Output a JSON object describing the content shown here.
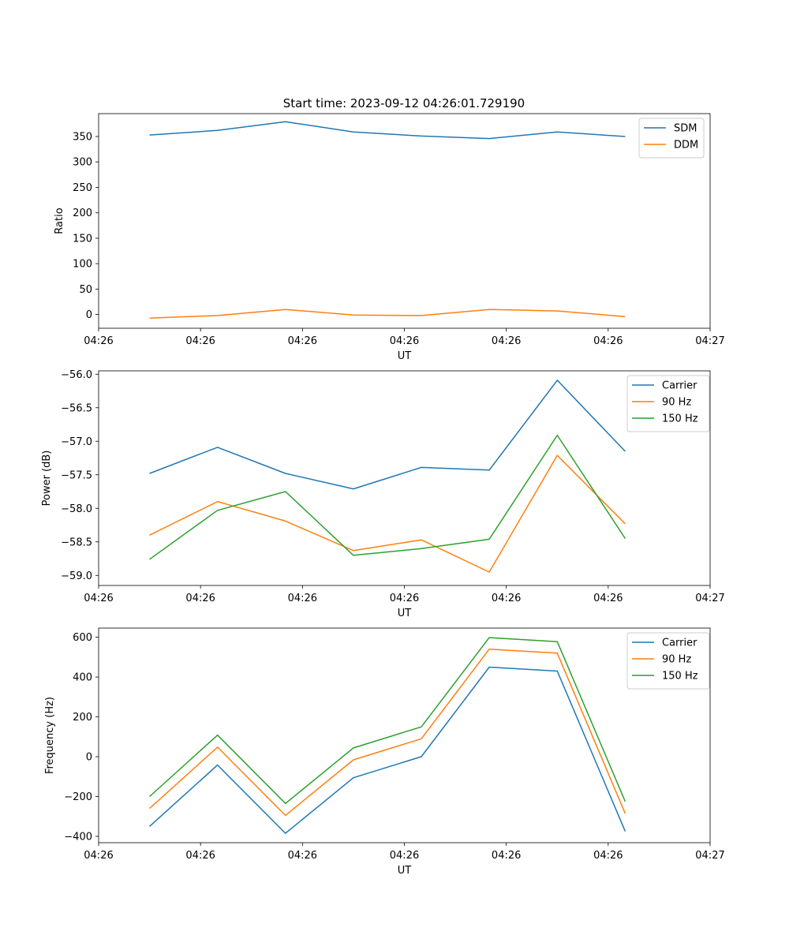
{
  "figure_title": "Start time: 2023-09-12 04:26:01.729190",
  "colors": {
    "blue": "#1f77b4",
    "orange": "#ff7f0e",
    "green": "#2ca02c"
  },
  "chart_data": [
    {
      "type": "line",
      "title": "Start time: 2023-09-12 04:26:01.729190",
      "xlabel": "UT",
      "ylabel": "Ratio",
      "x": [
        1,
        2,
        3,
        4,
        5,
        6,
        7,
        8
      ],
      "xlim": [
        0.25,
        9.25
      ],
      "xticks": [
        0.25,
        1.75,
        3.25,
        4.75,
        6.25,
        7.75,
        9.25
      ],
      "xtick_labels": [
        "04:26",
        "04:26",
        "04:26",
        "04:26",
        "04:26",
        "04:26",
        "04:27"
      ],
      "ylim": [
        -27,
        395
      ],
      "yticks": [
        0,
        50,
        100,
        150,
        200,
        250,
        300,
        350
      ],
      "legend_position": "top-right",
      "series": [
        {
          "name": "SDM",
          "color": "#1f77b4",
          "values": [
            353,
            362,
            379,
            359,
            351,
            346,
            359,
            350
          ]
        },
        {
          "name": "DDM",
          "color": "#ff7f0e",
          "values": [
            -7,
            -2,
            10,
            -1,
            -2,
            10,
            7,
            -4
          ]
        }
      ]
    },
    {
      "type": "line",
      "xlabel": "UT",
      "ylabel": "Power (dB)",
      "x": [
        1,
        2,
        3,
        4,
        5,
        6,
        7,
        8
      ],
      "xlim": [
        0.25,
        9.25
      ],
      "xticks": [
        0.25,
        1.75,
        3.25,
        4.75,
        6.25,
        7.75,
        9.25
      ],
      "xtick_labels": [
        "04:26",
        "04:26",
        "04:26",
        "04:26",
        "04:26",
        "04:26",
        "04:27"
      ],
      "ylim": [
        -59.15,
        -55.95
      ],
      "yticks": [
        -59.0,
        -58.5,
        -58.0,
        -57.5,
        -57.0,
        -56.5,
        -56.0
      ],
      "ytick_labels": [
        "−59.0",
        "−58.5",
        "−58.0",
        "−57.5",
        "−57.0",
        "−56.5",
        "−56.0"
      ],
      "legend_position": "top-right",
      "series": [
        {
          "name": "Carrier",
          "color": "#1f77b4",
          "values": [
            -57.48,
            -57.09,
            -57.48,
            -57.71,
            -57.39,
            -57.43,
            -56.09,
            -57.15
          ]
        },
        {
          "name": "90 Hz",
          "color": "#ff7f0e",
          "values": [
            -58.4,
            -57.9,
            -58.19,
            -58.63,
            -58.47,
            -58.95,
            -57.21,
            -58.23
          ]
        },
        {
          "name": "150 Hz",
          "color": "#2ca02c",
          "values": [
            -58.76,
            -58.03,
            -57.75,
            -58.7,
            -58.6,
            -58.46,
            -56.91,
            -58.45
          ]
        }
      ]
    },
    {
      "type": "line",
      "xlabel": "UT",
      "ylabel": "Frequency (Hz)",
      "x": [
        1,
        2,
        3,
        4,
        5,
        6,
        7,
        8
      ],
      "xlim": [
        0.25,
        9.25
      ],
      "xticks": [
        0.25,
        1.75,
        3.25,
        4.75,
        6.25,
        7.75,
        9.25
      ],
      "xtick_labels": [
        "04:26",
        "04:26",
        "04:26",
        "04:26",
        "04:26",
        "04:26",
        "04:27"
      ],
      "ylim": [
        -432,
        646
      ],
      "yticks": [
        -400,
        -200,
        0,
        200,
        400,
        600
      ],
      "ytick_labels": [
        "−400",
        "−200",
        "0",
        "200",
        "400",
        "600"
      ],
      "legend_position": "top-right",
      "series": [
        {
          "name": "Carrier",
          "color": "#1f77b4",
          "values": [
            -350,
            -42,
            -385,
            -106,
            0,
            450,
            430,
            -375
          ]
        },
        {
          "name": "90 Hz",
          "color": "#ff7f0e",
          "values": [
            -260,
            48,
            -295,
            -16,
            90,
            540,
            520,
            -285
          ]
        },
        {
          "name": "150 Hz",
          "color": "#2ca02c",
          "values": [
            -200,
            108,
            -235,
            44,
            150,
            598,
            578,
            -225
          ]
        }
      ]
    }
  ]
}
